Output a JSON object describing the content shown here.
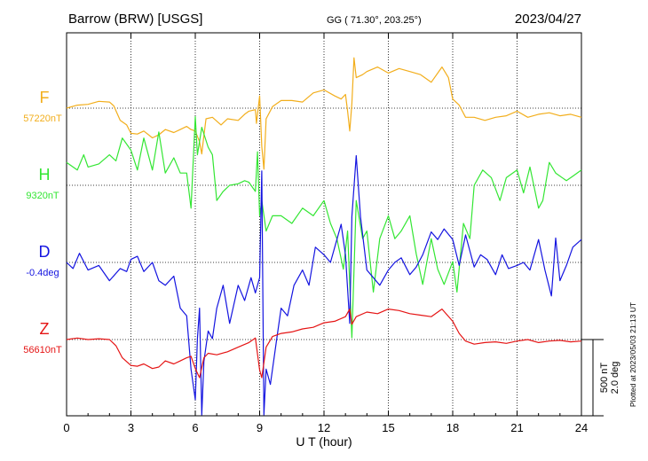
{
  "header": {
    "station": "Barrow (BRW)  [USGS]",
    "coords": "GG ( 71.30°, 203.25°)",
    "date": "2023/04/27"
  },
  "footer": {
    "plotted_note": "Plotted at 2023/05/03 21:13 UT"
  },
  "chart_data": {
    "type": "line",
    "xlabel": "U T (hour)",
    "xlim": [
      0,
      24
    ],
    "x_ticks": [
      0,
      3,
      6,
      9,
      12,
      15,
      18,
      21,
      24
    ],
    "grid": true,
    "scale_bar": {
      "nT_label": "500 nT",
      "deg_label": "2.0 deg",
      "nT": 500,
      "deg": 2.0
    },
    "series": [
      {
        "name": "F",
        "baseline_label": "57220nT",
        "baseline": 57220,
        "unit": "nT",
        "color": "#f2ae1c",
        "points": [
          [
            0,
            0
          ],
          [
            0.5,
            20
          ],
          [
            1,
            25
          ],
          [
            1.5,
            45
          ],
          [
            2,
            40
          ],
          [
            2.2,
            15
          ],
          [
            2.5,
            -80
          ],
          [
            2.8,
            -110
          ],
          [
            3,
            -165
          ],
          [
            3.3,
            -170
          ],
          [
            3.6,
            -150
          ],
          [
            4,
            -195
          ],
          [
            4.3,
            -175
          ],
          [
            4.6,
            -140
          ],
          [
            5,
            -160
          ],
          [
            5.3,
            -140
          ],
          [
            5.6,
            -120
          ],
          [
            5.8,
            -140
          ],
          [
            6,
            -150
          ],
          [
            6.2,
            -220
          ],
          [
            6.3,
            -300
          ],
          [
            6.4,
            -180
          ],
          [
            6.5,
            -70
          ],
          [
            6.8,
            -60
          ],
          [
            7.2,
            -110
          ],
          [
            7.5,
            -70
          ],
          [
            8,
            -80
          ],
          [
            8.3,
            -40
          ],
          [
            8.5,
            -20
          ],
          [
            8.8,
            -10
          ],
          [
            8.85,
            -100
          ],
          [
            9,
            80
          ],
          [
            9.1,
            -250
          ],
          [
            9.2,
            -400
          ],
          [
            9.3,
            -70
          ],
          [
            9.6,
            10
          ],
          [
            10,
            50
          ],
          [
            10.5,
            50
          ],
          [
            11,
            40
          ],
          [
            11.5,
            100
          ],
          [
            12,
            120
          ],
          [
            12.5,
            80
          ],
          [
            12.8,
            60
          ],
          [
            13,
            90
          ],
          [
            13.1,
            -20
          ],
          [
            13.2,
            -150
          ],
          [
            13.3,
            30
          ],
          [
            13.4,
            330
          ],
          [
            13.5,
            200
          ],
          [
            13.8,
            220
          ],
          [
            14,
            240
          ],
          [
            14.5,
            270
          ],
          [
            15,
            230
          ],
          [
            15.5,
            260
          ],
          [
            16,
            240
          ],
          [
            16.5,
            220
          ],
          [
            17,
            170
          ],
          [
            17.5,
            270
          ],
          [
            17.8,
            200
          ],
          [
            18,
            60
          ],
          [
            18.3,
            20
          ],
          [
            18.6,
            -60
          ],
          [
            19,
            -60
          ],
          [
            19.5,
            -80
          ],
          [
            20,
            -60
          ],
          [
            20.5,
            -50
          ],
          [
            21,
            -20
          ],
          [
            21.5,
            -60
          ],
          [
            22,
            -40
          ],
          [
            22.5,
            -30
          ],
          [
            23,
            -50
          ],
          [
            23.5,
            -40
          ],
          [
            24,
            -60
          ]
        ]
      },
      {
        "name": "H",
        "baseline_label": "9320nT",
        "baseline": 9320,
        "unit": "nT",
        "color": "#33e633",
        "points": [
          [
            0,
            150
          ],
          [
            0.5,
            100
          ],
          [
            0.8,
            200
          ],
          [
            1,
            120
          ],
          [
            1.5,
            140
          ],
          [
            2,
            200
          ],
          [
            2.3,
            160
          ],
          [
            2.6,
            310
          ],
          [
            3,
            230
          ],
          [
            3.3,
            100
          ],
          [
            3.6,
            310
          ],
          [
            4,
            100
          ],
          [
            4.3,
            350
          ],
          [
            4.6,
            80
          ],
          [
            5,
            180
          ],
          [
            5.3,
            80
          ],
          [
            5.6,
            80
          ],
          [
            5.8,
            -150
          ],
          [
            6,
            450
          ],
          [
            6.1,
            200
          ],
          [
            6.3,
            380
          ],
          [
            6.6,
            250
          ],
          [
            6.8,
            200
          ],
          [
            7,
            -100
          ],
          [
            7.3,
            -40
          ],
          [
            7.6,
            0
          ],
          [
            8,
            10
          ],
          [
            8.3,
            30
          ],
          [
            8.5,
            20
          ],
          [
            8.8,
            -40
          ],
          [
            8.9,
            220
          ],
          [
            9,
            -200
          ],
          [
            9.1,
            -100
          ],
          [
            9.3,
            -300
          ],
          [
            9.6,
            -200
          ],
          [
            10,
            -200
          ],
          [
            10.5,
            -250
          ],
          [
            11,
            -150
          ],
          [
            11.5,
            -200
          ],
          [
            12,
            -100
          ],
          [
            12.3,
            -250
          ],
          [
            12.6,
            -350
          ],
          [
            12.9,
            -550
          ],
          [
            13.1,
            -300
          ],
          [
            13.3,
            -1000
          ],
          [
            13.5,
            -100
          ],
          [
            13.8,
            -350
          ],
          [
            14,
            -300
          ],
          [
            14.3,
            -700
          ],
          [
            14.6,
            -350
          ],
          [
            15,
            -200
          ],
          [
            15.3,
            -350
          ],
          [
            15.6,
            -300
          ],
          [
            16,
            -200
          ],
          [
            16.3,
            -450
          ],
          [
            16.6,
            -650
          ],
          [
            17,
            -350
          ],
          [
            17.3,
            -550
          ],
          [
            17.6,
            -650
          ],
          [
            18,
            -500
          ],
          [
            18.2,
            -700
          ],
          [
            18.5,
            -250
          ],
          [
            18.8,
            -350
          ],
          [
            19,
            0
          ],
          [
            19.4,
            100
          ],
          [
            19.8,
            50
          ],
          [
            20.2,
            -100
          ],
          [
            20.5,
            50
          ],
          [
            21,
            100
          ],
          [
            21.3,
            -50
          ],
          [
            21.6,
            120
          ],
          [
            22,
            -150
          ],
          [
            22.2,
            -100
          ],
          [
            22.5,
            150
          ],
          [
            22.8,
            80
          ],
          [
            23.3,
            30
          ],
          [
            23.6,
            60
          ],
          [
            24,
            100
          ]
        ]
      },
      {
        "name": "D",
        "baseline_label": "-0.4deg",
        "baseline": -0.4,
        "unit": "deg",
        "color": "#1414e0",
        "points": [
          [
            0,
            0
          ],
          [
            0.3,
            -40
          ],
          [
            0.6,
            60
          ],
          [
            1,
            -50
          ],
          [
            1.5,
            -20
          ],
          [
            2,
            -120
          ],
          [
            2.5,
            -40
          ],
          [
            2.8,
            -60
          ],
          [
            3,
            20
          ],
          [
            3.3,
            40
          ],
          [
            3.6,
            -60
          ],
          [
            4,
            0
          ],
          [
            4.3,
            -120
          ],
          [
            4.6,
            -150
          ],
          [
            5,
            -90
          ],
          [
            5.3,
            -300
          ],
          [
            5.6,
            -350
          ],
          [
            5.8,
            -700
          ],
          [
            6,
            -900
          ],
          [
            6.1,
            -500
          ],
          [
            6.2,
            -300
          ],
          [
            6.3,
            -1150
          ],
          [
            6.4,
            -650
          ],
          [
            6.6,
            -450
          ],
          [
            6.8,
            -500
          ],
          [
            7,
            -300
          ],
          [
            7.3,
            -150
          ],
          [
            7.6,
            -400
          ],
          [
            8,
            -150
          ],
          [
            8.3,
            -250
          ],
          [
            8.6,
            -100
          ],
          [
            8.8,
            -200
          ],
          [
            9,
            -100
          ],
          [
            9.1,
            600
          ],
          [
            9.2,
            -1400
          ],
          [
            9.3,
            -700
          ],
          [
            9.5,
            -800
          ],
          [
            9.8,
            -500
          ],
          [
            10,
            -300
          ],
          [
            10.3,
            -350
          ],
          [
            10.6,
            -150
          ],
          [
            11,
            -50
          ],
          [
            11.3,
            -150
          ],
          [
            11.6,
            100
          ],
          [
            12,
            50
          ],
          [
            12.3,
            0
          ],
          [
            12.6,
            150
          ],
          [
            12.8,
            250
          ],
          [
            13,
            50
          ],
          [
            13.2,
            -400
          ],
          [
            13.3,
            300
          ],
          [
            13.5,
            700
          ],
          [
            13.7,
            300
          ],
          [
            14,
            -50
          ],
          [
            14.3,
            -100
          ],
          [
            14.6,
            -150
          ],
          [
            15,
            -50
          ],
          [
            15.3,
            0
          ],
          [
            15.6,
            30
          ],
          [
            16,
            -80
          ],
          [
            16.3,
            -30
          ],
          [
            16.6,
            50
          ],
          [
            17,
            200
          ],
          [
            17.3,
            150
          ],
          [
            17.6,
            220
          ],
          [
            18,
            150
          ],
          [
            18.3,
            -20
          ],
          [
            18.6,
            180
          ],
          [
            19,
            -30
          ],
          [
            19.3,
            50
          ],
          [
            19.6,
            20
          ],
          [
            20,
            -80
          ],
          [
            20.3,
            50
          ],
          [
            20.6,
            -40
          ],
          [
            21,
            -20
          ],
          [
            21.3,
            0
          ],
          [
            21.6,
            -50
          ],
          [
            22,
            150
          ],
          [
            22.3,
            -50
          ],
          [
            22.6,
            -220
          ],
          [
            22.8,
            160
          ],
          [
            23,
            -120
          ],
          [
            23.3,
            -20
          ],
          [
            23.6,
            100
          ],
          [
            24,
            150
          ]
        ]
      },
      {
        "name": "Z",
        "baseline_label": "56610nT",
        "baseline": 56610,
        "unit": "nT",
        "color": "#e51414",
        "points": [
          [
            0,
            0
          ],
          [
            0.5,
            10
          ],
          [
            1,
            0
          ],
          [
            1.5,
            5
          ],
          [
            2,
            0
          ],
          [
            2.3,
            -40
          ],
          [
            2.6,
            -120
          ],
          [
            3,
            -170
          ],
          [
            3.3,
            -175
          ],
          [
            3.6,
            -160
          ],
          [
            4,
            -190
          ],
          [
            4.3,
            -180
          ],
          [
            4.6,
            -140
          ],
          [
            5,
            -160
          ],
          [
            5.3,
            -140
          ],
          [
            5.6,
            -120
          ],
          [
            5.8,
            -110
          ],
          [
            6,
            -190
          ],
          [
            6.2,
            -250
          ],
          [
            6.4,
            -120
          ],
          [
            6.6,
            -90
          ],
          [
            7,
            -100
          ],
          [
            7.5,
            -80
          ],
          [
            8,
            -50
          ],
          [
            8.5,
            -20
          ],
          [
            8.8,
            10
          ],
          [
            9,
            -200
          ],
          [
            9.1,
            -250
          ],
          [
            9.3,
            -50
          ],
          [
            9.6,
            20
          ],
          [
            10,
            40
          ],
          [
            10.5,
            50
          ],
          [
            11,
            70
          ],
          [
            11.5,
            80
          ],
          [
            12,
            110
          ],
          [
            12.5,
            120
          ],
          [
            13,
            150
          ],
          [
            13.2,
            200
          ],
          [
            13.3,
            100
          ],
          [
            13.5,
            150
          ],
          [
            14,
            180
          ],
          [
            14.5,
            170
          ],
          [
            15,
            200
          ],
          [
            15.5,
            190
          ],
          [
            16,
            170
          ],
          [
            16.5,
            160
          ],
          [
            17,
            150
          ],
          [
            17.5,
            200
          ],
          [
            18,
            120
          ],
          [
            18.3,
            40
          ],
          [
            18.6,
            -10
          ],
          [
            19,
            -30
          ],
          [
            19.5,
            -20
          ],
          [
            20,
            -15
          ],
          [
            20.5,
            -25
          ],
          [
            21,
            -10
          ],
          [
            21.5,
            0
          ],
          [
            22,
            -20
          ],
          [
            22.5,
            -10
          ],
          [
            23,
            -5
          ],
          [
            23.5,
            -15
          ],
          [
            24,
            -10
          ]
        ]
      }
    ]
  }
}
